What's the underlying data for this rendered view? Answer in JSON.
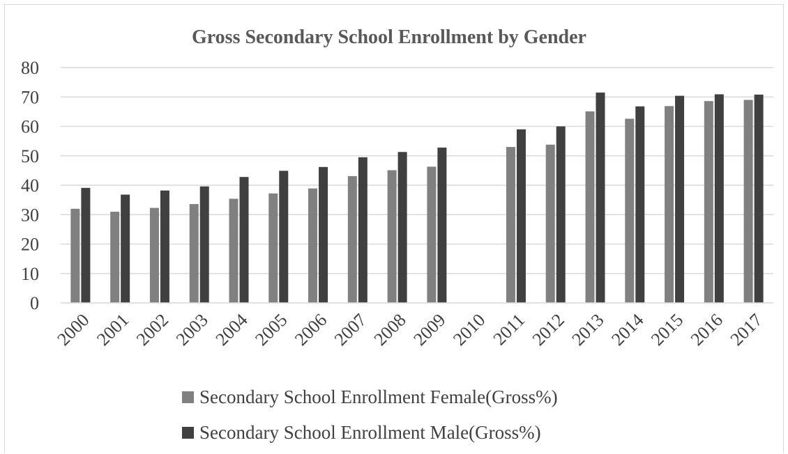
{
  "chart_data": {
    "type": "bar",
    "title": "Gross Secondary School Enrollment by Gender",
    "xlabel": "",
    "ylabel": "",
    "ylim": [
      0,
      80
    ],
    "yticks": [
      "0",
      "10",
      "20",
      "30",
      "40",
      "50",
      "60",
      "70",
      "80"
    ],
    "grid": true,
    "legend_position": "bottom",
    "categories": [
      "2000",
      "2001",
      "2002",
      "2003",
      "2004",
      "2005",
      "2006",
      "2007",
      "2008",
      "2009",
      "2010",
      "2011",
      "2012",
      "2013",
      "2014",
      "2015",
      "2016",
      "2017"
    ],
    "series": [
      {
        "name": "Secondary School Enrollment Female(Gross%)",
        "color": "#808080",
        "values": [
          32.0,
          31.0,
          32.3,
          33.6,
          35.4,
          37.2,
          38.9,
          43.1,
          45.1,
          46.3,
          null,
          53.0,
          53.8,
          65.1,
          62.6,
          66.9,
          68.6,
          69.0
        ]
      },
      {
        "name": "Secondary School Enrollment Male(Gross%)",
        "color": "#404040",
        "values": [
          39.1,
          36.8,
          38.2,
          39.6,
          42.8,
          44.9,
          46.2,
          49.5,
          51.3,
          52.8,
          null,
          59.0,
          60.0,
          71.5,
          66.8,
          70.4,
          70.9,
          70.8
        ]
      }
    ]
  }
}
